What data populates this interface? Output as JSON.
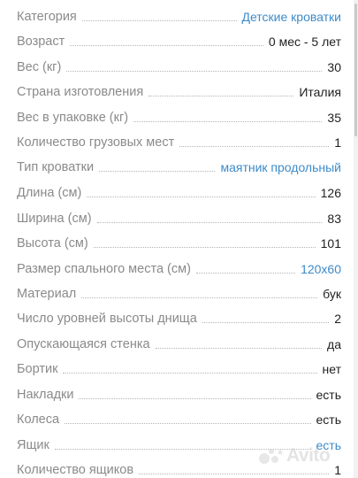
{
  "specs": [
    {
      "label": "Категория",
      "value": "Детские кроватки",
      "link": true
    },
    {
      "label": "Возраст",
      "value": "0 мес - 5 лет",
      "link": false
    },
    {
      "label": "Вес (кг)",
      "value": "30",
      "link": false
    },
    {
      "label": "Страна изготовления",
      "value": "Италия",
      "link": false
    },
    {
      "label": "Вес в упаковке (кг)",
      "value": "35",
      "link": false
    },
    {
      "label": "Количество грузовых мест",
      "value": "1",
      "link": false
    },
    {
      "label": "Тип кроватки",
      "value": "маятник продольный",
      "link": true
    },
    {
      "label": "Длина (см)",
      "value": "126",
      "link": false
    },
    {
      "label": "Ширина (см)",
      "value": "83",
      "link": false
    },
    {
      "label": "Высота (см)",
      "value": "101",
      "link": false
    },
    {
      "label": "Размер спального места (см)",
      "value": "120х60",
      "link": true
    },
    {
      "label": "Материал",
      "value": "бук",
      "link": false
    },
    {
      "label": "Число уровней высоты днища",
      "value": "2",
      "link": false
    },
    {
      "label": "Опускающаяся стенка",
      "value": "да",
      "link": false
    },
    {
      "label": "Бортик",
      "value": "нет",
      "link": false
    },
    {
      "label": "Накладки",
      "value": "есть",
      "link": false
    },
    {
      "label": "Колеса",
      "value": "есть",
      "link": false
    },
    {
      "label": "Ящик",
      "value": "есть",
      "link": true
    },
    {
      "label": "Количество ящиков",
      "value": "1",
      "link": false
    }
  ],
  "watermark": {
    "text": "Avito",
    "icon": "avito-logo-icon"
  },
  "colors": {
    "label": "#8a8a8a",
    "value": "#1f1f1f",
    "link": "#3d8bc9"
  }
}
